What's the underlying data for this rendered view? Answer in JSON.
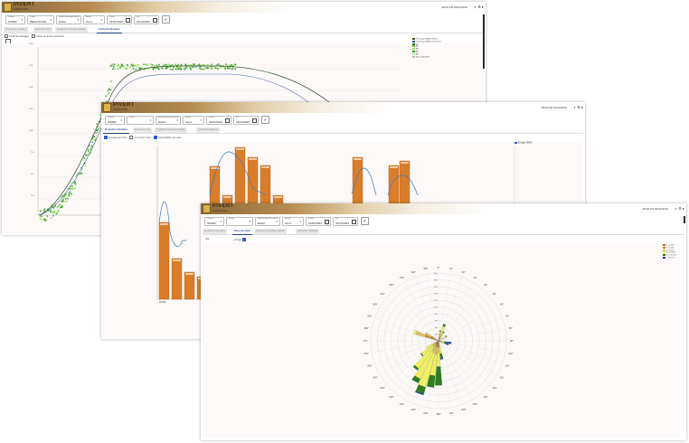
{
  "app": {
    "brand": "PIVERT",
    "tagline": "CONSULTING",
    "user_links": "MOAI FR   MOAI ENG"
  },
  "window1": {
    "filters": [
      {
        "label": "Parque",
        "value": "WHMD"
      },
      {
        "label": "Projet",
        "value": "MEALOUCE1"
      },
      {
        "label": "Modele Aerogenerateur",
        "value": "Eolien"
      },
      {
        "label": "Aerog.",
        "value": "ALL1"
      },
      {
        "label": "Debut",
        "value": "01/01/2024"
      },
      {
        "label": "Fin",
        "value": "31/12/2024"
      }
    ],
    "tabs": [
      "Production Cumulative",
      "Roses des Vents",
      "Production Cumulative Globale",
      "Courbe De Puissance"
    ],
    "active_tab": 3,
    "options": [
      "Filtrer les lachages",
      "Filtrer les arrets production"
    ],
    "y_ticks": [
      "2000",
      "1750",
      "1500",
      "1250",
      "1000",
      "750",
      "500",
      "250"
    ],
    "legend": [
      {
        "label": "Theorique MEALOUCE1",
        "color": "#3b4a1f"
      },
      {
        "label": "Theorique MEALOUCE1 ISO",
        "color": "#2e5a7a"
      },
      {
        "label": "A1",
        "color": "#1f7a1f"
      },
      {
        "label": "A2",
        "color": "#6cc83c"
      },
      {
        "label": "A3",
        "color": "#99e65a"
      },
      {
        "label": "A4",
        "color": "#2fa02f"
      },
      {
        "label": "A5",
        "color": "#b8f090"
      },
      {
        "label": "Non exploitable",
        "color": "#bbbbbb"
      }
    ]
  },
  "window2": {
    "filters": [
      {
        "label": "Parque",
        "value": "WHMD"
      },
      {
        "label": "Projet",
        "value": ""
      },
      {
        "label": "Modele Aerogenerateur",
        "value": "Eolien"
      },
      {
        "label": "Aerog.",
        "value": "ALL1"
      },
      {
        "label": "Debut",
        "value": "01/01/2024"
      },
      {
        "label": "Fin",
        "value": "31/12/2024"
      }
    ],
    "tabs": [
      "Production Cumulative",
      "Roses des Vents",
      "Production Cumulative Globale",
      "Courbe De Puissance"
    ],
    "active_tab": 0,
    "options": [
      "Energie par mois",
      "Cumul par mois",
      "Disponibilite par mois"
    ],
    "options_state": [
      true,
      false,
      true
    ],
    "legend": "Energie (MWh)",
    "x_label": "WHMD"
  },
  "window3": {
    "filters": [
      {
        "label": "Parque",
        "value": "WHMD"
      },
      {
        "label": "Projet",
        "value": ""
      },
      {
        "label": "Modele Aerogenerateur",
        "value": "Eolien"
      },
      {
        "label": "Aerog.",
        "value": "ALL1"
      },
      {
        "label": "Debut",
        "value": "01/01/2024"
      },
      {
        "label": "Fin",
        "value": "31/12/2024"
      }
    ],
    "tabs": [
      "Production Cumulative",
      "Roses des Vents",
      "Production Cumulative Globale",
      "Courbe De Puissance"
    ],
    "active_tab": 1,
    "sidebar": "ALL",
    "project_label": "Projet",
    "legend": [
      {
        "label": "0 - 3 m/s",
        "color": "#e05a10"
      },
      {
        "label": "3 - 6 m/s",
        "color": "#c8862a"
      },
      {
        "label": "6 - 9 m/s",
        "color": "#e0c060"
      },
      {
        "label": "9 - 12 m/s",
        "color": "#f0f060"
      },
      {
        "label": "12 - 15 m/s",
        "color": "#2e7d1f"
      },
      {
        "label": "> 15 m/s",
        "color": "#1f3fb0"
      }
    ],
    "ring_labels": [
      "2%",
      "4%",
      "6%",
      "8%",
      "10%",
      "12%",
      "14%",
      "16%",
      "18%",
      "20%"
    ],
    "compass": [
      "0°",
      "10°",
      "20°",
      "30°",
      "40°",
      "50°",
      "60°",
      "70°",
      "80°",
      "90°",
      "100°",
      "110°",
      "120°",
      "130°",
      "140°",
      "150°",
      "160°",
      "170°",
      "180°",
      "190°",
      "200°",
      "210°",
      "220°",
      "230°",
      "240°",
      "250°",
      "260°",
      "270°",
      "280°",
      "290°",
      "300°",
      "310°",
      "320°",
      "330°",
      "340°",
      "350°"
    ]
  }
}
